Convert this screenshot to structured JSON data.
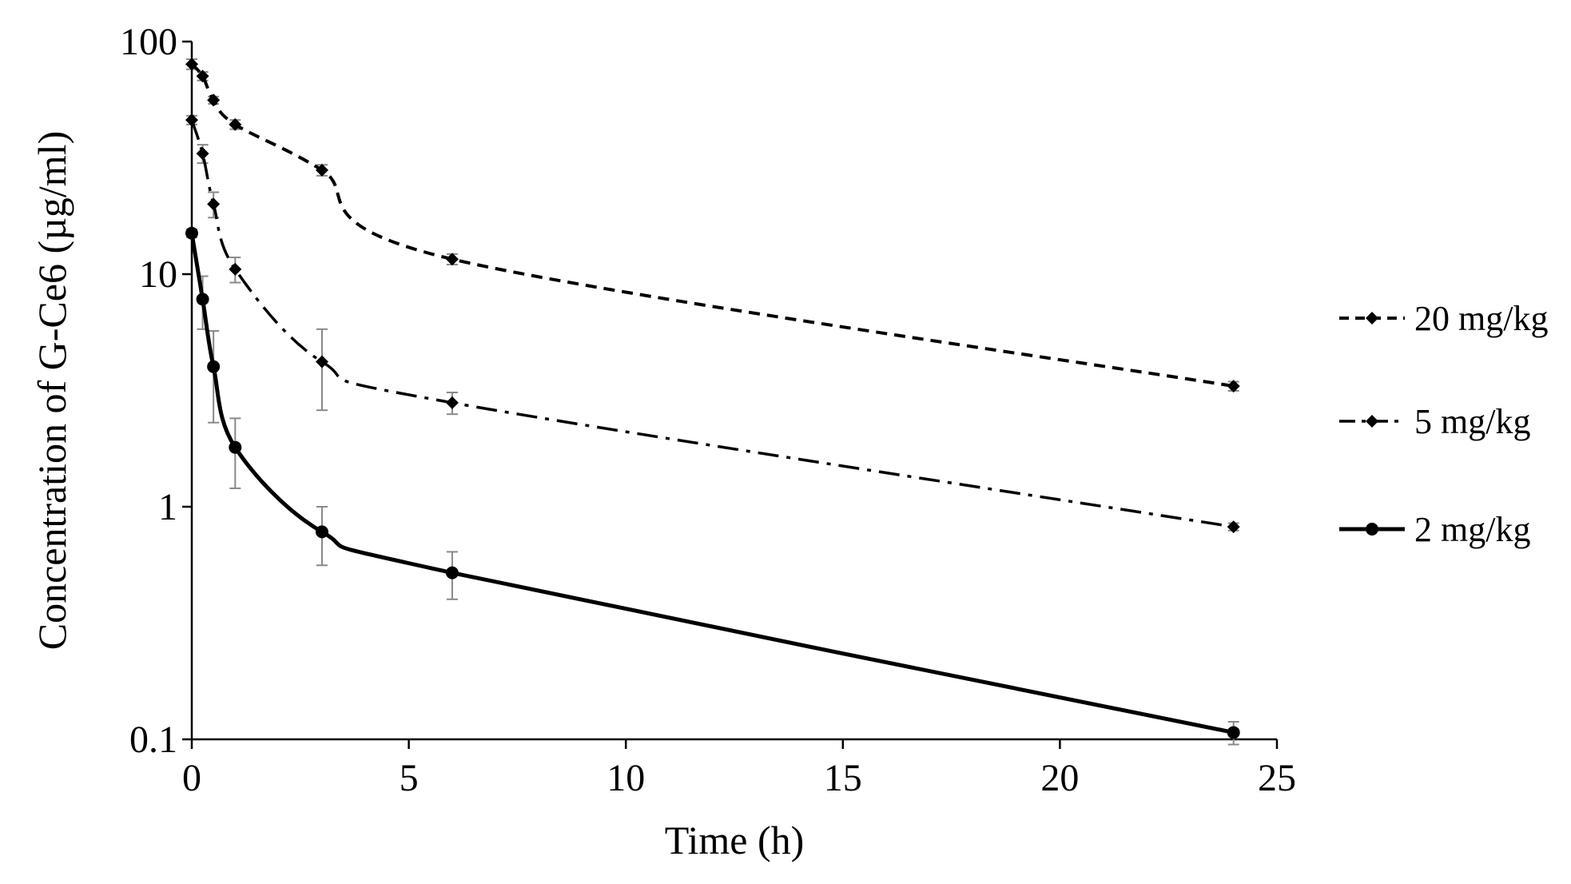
{
  "chart_data": {
    "type": "line",
    "title": "",
    "xlabel": "Time (h)",
    "ylabel": "Concentration of  G-Ce6 (µg/ml)",
    "x_scale": "linear",
    "y_scale": "log",
    "xlim": [
      0,
      25
    ],
    "ylim": [
      0.1,
      100
    ],
    "x_ticks": [
      0,
      5,
      10,
      15,
      20,
      25
    ],
    "x_tick_labels": [
      "0",
      "5",
      "10",
      "15",
      "20",
      "25"
    ],
    "y_ticks": [
      0.1,
      1,
      10,
      100
    ],
    "y_tick_labels": [
      "0.1",
      "1",
      "10",
      "100"
    ],
    "grid": false,
    "legend_position": "right",
    "series": [
      {
        "name": "20 mg/kg",
        "line_style": "dashed",
        "marker": "diamond",
        "x": [
          0,
          0.25,
          0.5,
          1,
          3,
          6,
          24
        ],
        "y": [
          80,
          71,
          56,
          44,
          28,
          11.6,
          3.3
        ],
        "error": [
          4,
          3,
          2,
          2,
          1.5,
          0.6,
          0.15
        ]
      },
      {
        "name": "5 mg/kg",
        "line_style": "dash-dot",
        "marker": "diamond",
        "x": [
          0,
          0.25,
          0.5,
          1,
          3,
          6,
          24
        ],
        "y": [
          46,
          33,
          20,
          10.5,
          4.2,
          2.8,
          0.82
        ],
        "error": [
          2,
          3,
          2.5,
          1.3,
          1.6,
          0.3,
          0.03
        ]
      },
      {
        "name": "2 mg/kg",
        "line_style": "solid",
        "marker": "circle",
        "x": [
          0,
          0.25,
          0.5,
          1,
          3,
          6,
          24
        ],
        "y": [
          15,
          7.8,
          4.0,
          1.8,
          0.78,
          0.52,
          0.107
        ],
        "error": [
          0.6,
          2.0,
          1.7,
          0.6,
          0.22,
          0.12,
          0.012
        ]
      }
    ]
  }
}
